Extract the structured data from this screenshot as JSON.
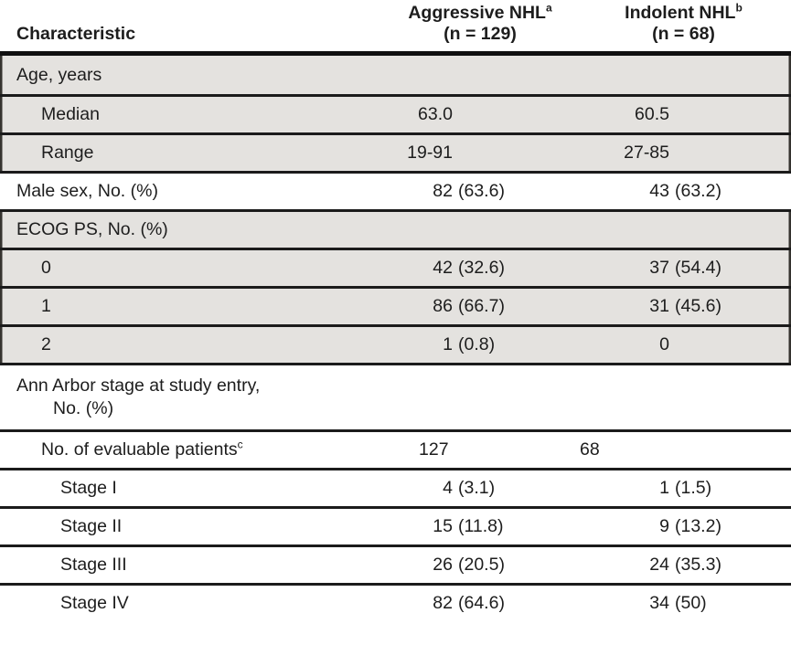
{
  "header": {
    "characteristic": "Characteristic",
    "aggressive": {
      "title": "Aggressive NHL",
      "sup": "a",
      "n_line": "(n = 129)"
    },
    "indolent": {
      "title": "Indolent NHL",
      "sup": "b",
      "n_line": "(n = 68)"
    }
  },
  "colors": {
    "row_shade": "#e4e2df",
    "rule": "#1b1b1b",
    "text": "#1d1d1d"
  },
  "rows": [
    {
      "label": "Age, years",
      "aggressive": {
        "n": "",
        "pct": ""
      },
      "indolent": {
        "n": "",
        "pct": ""
      }
    },
    {
      "label": "Median",
      "aggressive": {
        "n": "63.0",
        "pct": ""
      },
      "indolent": {
        "n": "60.5",
        "pct": ""
      }
    },
    {
      "label": "Range",
      "aggressive": {
        "n": "19-91",
        "pct": ""
      },
      "indolent": {
        "n": "27-85",
        "pct": ""
      }
    },
    {
      "label": "Male sex, No. (%)",
      "aggressive": {
        "n": "82",
        "pct": "(63.6)"
      },
      "indolent": {
        "n": "43",
        "pct": "(63.2)"
      }
    },
    {
      "label": "ECOG PS, No. (%)",
      "aggressive": {
        "n": "",
        "pct": ""
      },
      "indolent": {
        "n": "",
        "pct": ""
      }
    },
    {
      "label": "0",
      "aggressive": {
        "n": "42",
        "pct": "(32.6)"
      },
      "indolent": {
        "n": "37",
        "pct": "(54.4)"
      }
    },
    {
      "label": "1",
      "aggressive": {
        "n": "86",
        "pct": "(66.7)"
      },
      "indolent": {
        "n": "31",
        "pct": "(45.6)"
      }
    },
    {
      "label": "2",
      "aggressive": {
        "n": "1",
        "pct": "(0.8)"
      },
      "indolent": {
        "n": "0",
        "pct": ""
      }
    },
    {
      "label": "Ann Arbor stage at study entry,",
      "label2": "No. (%)",
      "aggressive": {
        "n": "",
        "pct": ""
      },
      "indolent": {
        "n": "",
        "pct": ""
      }
    },
    {
      "label": "No. of evaluable patients",
      "sup": "c",
      "aggressive": {
        "n": "127",
        "pct": ""
      },
      "indolent": {
        "n": "68",
        "pct": ""
      }
    },
    {
      "label": "Stage I",
      "aggressive": {
        "n": "4",
        "pct": "(3.1)"
      },
      "indolent": {
        "n": "1",
        "pct": "(1.5)"
      }
    },
    {
      "label": "Stage II",
      "aggressive": {
        "n": "15",
        "pct": "(11.8)"
      },
      "indolent": {
        "n": "9",
        "pct": "(13.2)"
      }
    },
    {
      "label": "Stage III",
      "aggressive": {
        "n": "26",
        "pct": "(20.5)"
      },
      "indolent": {
        "n": "24",
        "pct": "(35.3)"
      }
    },
    {
      "label": "Stage IV",
      "aggressive": {
        "n": "82",
        "pct": "(64.6)"
      },
      "indolent": {
        "n": "34",
        "pct": "(50)"
      }
    }
  ]
}
